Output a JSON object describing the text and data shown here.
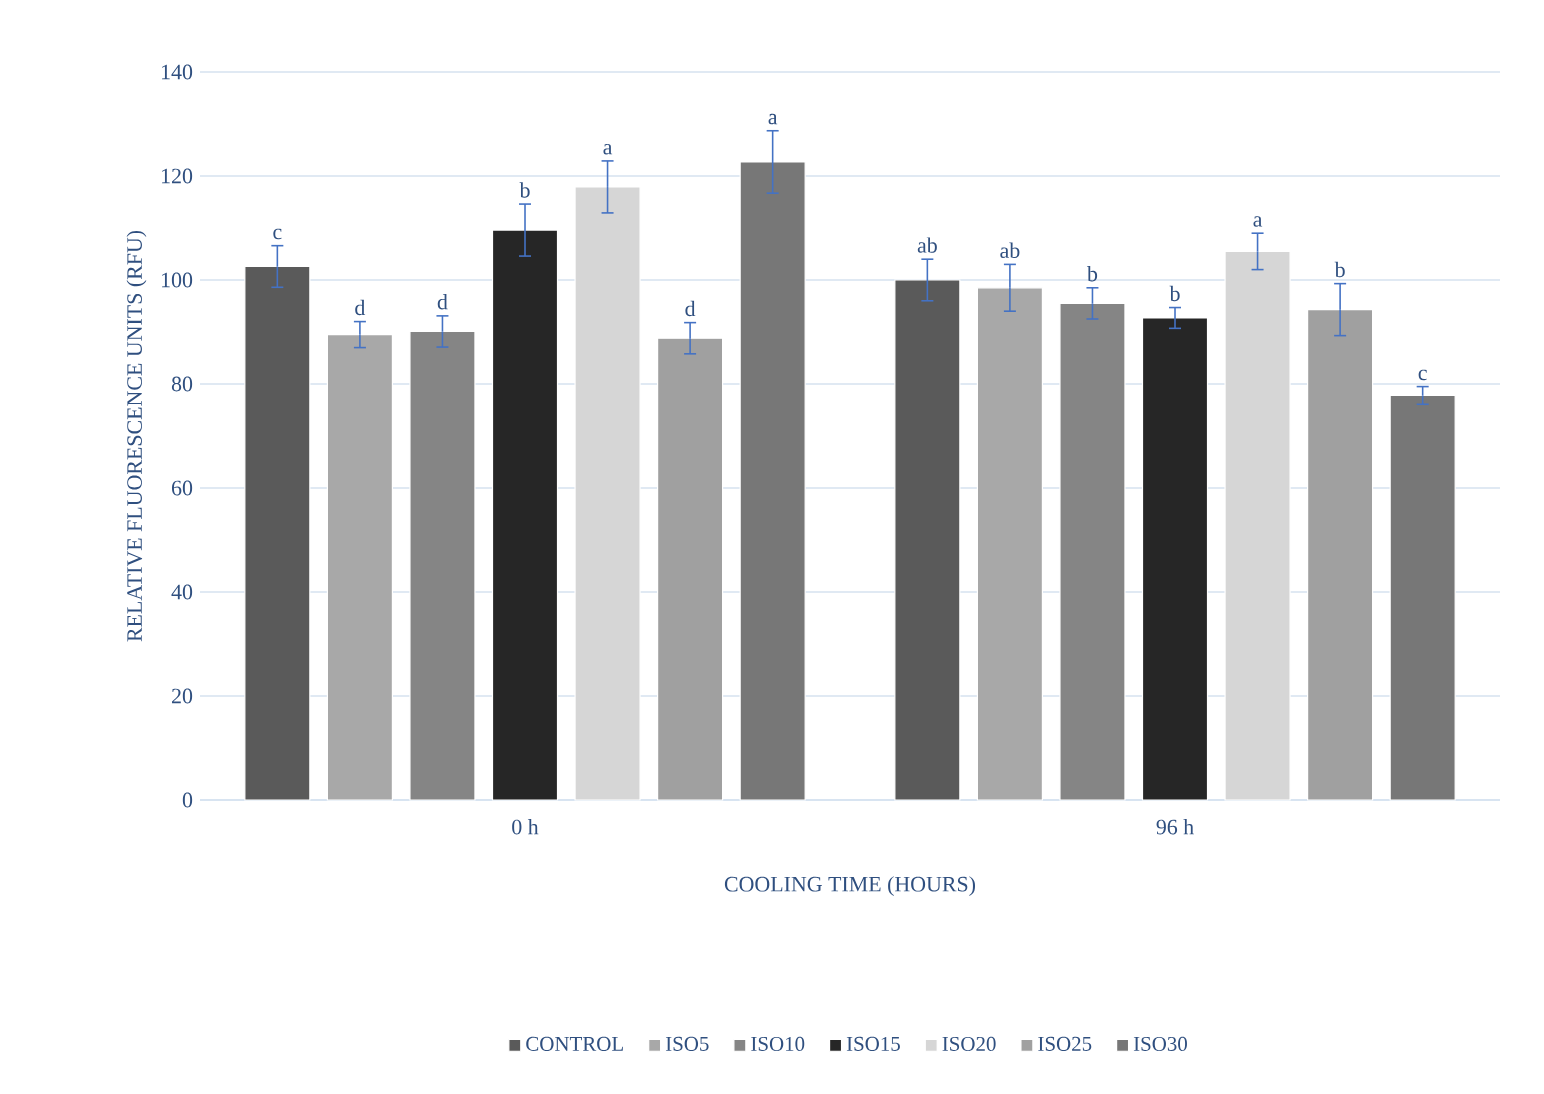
{
  "chart_data": {
    "type": "bar",
    "xlabel": "COOLING TIME (HOURS)",
    "ylabel": "RELATIVE FLUORESCENCE UNITS (RFU)",
    "categories": [
      "0 h",
      "96 h"
    ],
    "ylim": [
      0,
      140
    ],
    "yticks": [
      0,
      20,
      40,
      60,
      80,
      100,
      120,
      140
    ],
    "grid": "y",
    "legend": "bottom",
    "series": [
      {
        "name": "CONTROL",
        "color": "#5a5a5a",
        "values": [
          102.6,
          100
        ],
        "errors": [
          4,
          4
        ],
        "value_labels": [
          "c",
          "ab"
        ]
      },
      {
        "name": "ISO5",
        "color": "#a8a8a8",
        "values": [
          89.5,
          98.5
        ],
        "errors": [
          2.5,
          4.5
        ],
        "value_labels": [
          "d",
          "ab"
        ]
      },
      {
        "name": "ISO10",
        "color": "#858585",
        "values": [
          90.1,
          95.5
        ],
        "errors": [
          3,
          3
        ],
        "value_labels": [
          "d",
          "b"
        ]
      },
      {
        "name": "ISO15",
        "color": "#262626",
        "values": [
          109.6,
          92.7
        ],
        "errors": [
          5,
          2
        ],
        "value_labels": [
          "b",
          "b"
        ]
      },
      {
        "name": "ISO20",
        "color": "#d6d6d6",
        "values": [
          117.9,
          105.5
        ],
        "errors": [
          5,
          3.5
        ],
        "value_labels": [
          "a",
          "a"
        ]
      },
      {
        "name": "ISO25",
        "color": "#a0a0a0",
        "values": [
          88.8,
          94.3
        ],
        "errors": [
          3,
          5
        ],
        "value_labels": [
          "d",
          "b"
        ]
      },
      {
        "name": "ISO30",
        "color": "#777777",
        "values": [
          122.7,
          77.8
        ],
        "errors": [
          6,
          1.7
        ],
        "value_labels": [
          "a",
          "c"
        ]
      }
    ]
  }
}
